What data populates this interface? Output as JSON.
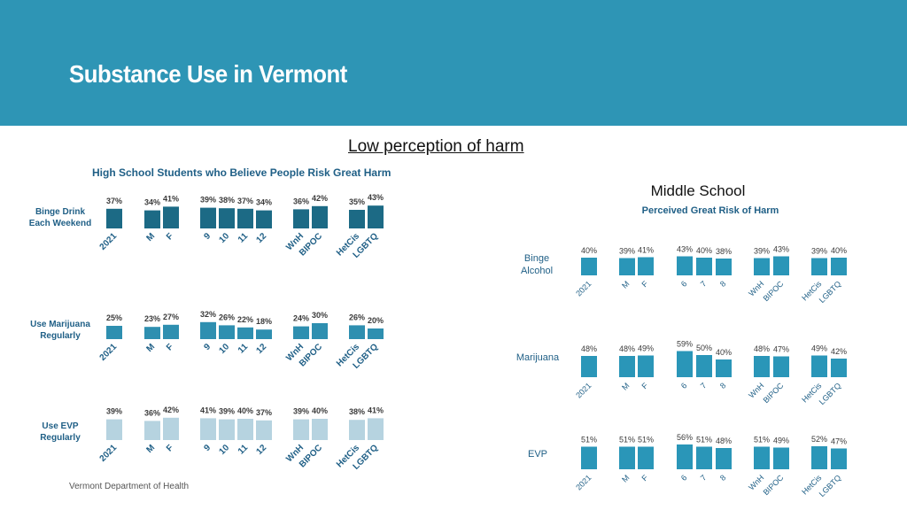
{
  "header": {
    "title": "Substance Use in Vermont"
  },
  "subtitle": "Low perception of harm",
  "footer": "Vermont Department of Health",
  "colors": {
    "header_bg": "#2e95b5",
    "hs_dark": "#1c6a85",
    "hs_mid": "#2e8fb0",
    "hs_light": "#b6d3e0",
    "ms_bar": "#2a96b8"
  },
  "chart_data": [
    {
      "type": "bar",
      "title": "High School Students who Believe People Risk Great Harm",
      "categories": [
        "2021",
        "M",
        "F",
        "9",
        "10",
        "11",
        "12",
        "WnH",
        "BIPOC",
        "HetCis",
        "LGBTQ"
      ],
      "groups": [
        [
          "2021"
        ],
        [
          "M",
          "F"
        ],
        [
          "9",
          "10",
          "11",
          "12"
        ],
        [
          "WnH",
          "BIPOC"
        ],
        [
          "HetCis",
          "LGBTQ"
        ]
      ],
      "ylim": [
        0,
        100
      ],
      "series": [
        {
          "name": "Binge Drink Each Weekend",
          "values": [
            37,
            34,
            41,
            39,
            38,
            37,
            34,
            36,
            42,
            35,
            43
          ]
        },
        {
          "name": "Use Marijuana Regularly",
          "values": [
            25,
            23,
            27,
            32,
            26,
            22,
            18,
            24,
            30,
            26,
            20
          ]
        },
        {
          "name": "Use EVP Regularly",
          "values": [
            39,
            36,
            42,
            41,
            39,
            40,
            37,
            39,
            40,
            38,
            41
          ]
        }
      ]
    },
    {
      "type": "bar",
      "heading": "Middle School",
      "title": "Perceived Great Risk of Harm",
      "categories": [
        "2021",
        "M",
        "F",
        "6",
        "7",
        "8",
        "WnH",
        "BIPOC",
        "HetCis",
        "LGBTQ"
      ],
      "groups": [
        [
          "2021"
        ],
        [
          "M",
          "F"
        ],
        [
          "6",
          "7",
          "8"
        ],
        [
          "WnH",
          "BIPOC"
        ],
        [
          "HetCis",
          "LGBTQ"
        ]
      ],
      "ylim": [
        0,
        100
      ],
      "series": [
        {
          "name": "Binge Alcohol",
          "values": [
            40,
            39,
            41,
            43,
            40,
            38,
            39,
            43,
            39,
            40
          ]
        },
        {
          "name": "Marijuana",
          "values": [
            48,
            48,
            49,
            59,
            50,
            40,
            48,
            47,
            49,
            42
          ]
        },
        {
          "name": "EVP",
          "values": [
            51,
            51,
            51,
            56,
            51,
            48,
            51,
            49,
            52,
            47
          ]
        }
      ]
    }
  ]
}
